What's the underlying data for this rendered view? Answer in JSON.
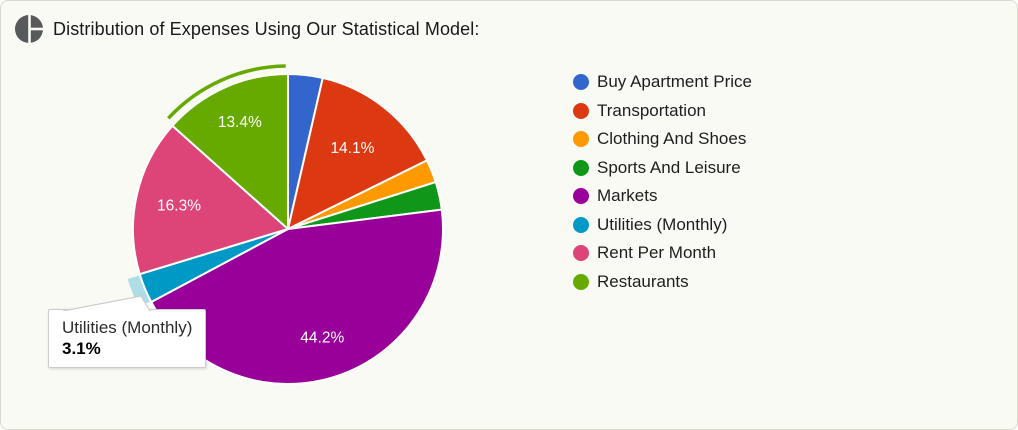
{
  "chart_data": {
    "type": "pie",
    "title": "Distribution of Expenses Using Our Statistical Model:",
    "unit": "percent",
    "legend_position": "right",
    "grid": false,
    "slices": [
      {
        "label": "Buy Apartment Price",
        "value": 3.6,
        "pct_label": "",
        "color": "#3366CC",
        "state": "normal"
      },
      {
        "label": "Transportation",
        "value": 14.1,
        "pct_label": "14.1%",
        "color": "#DC3912",
        "state": "normal"
      },
      {
        "label": "Clothing And Shoes",
        "value": 2.4,
        "pct_label": "",
        "color": "#FF9900",
        "state": "normal"
      },
      {
        "label": "Sports And Leisure",
        "value": 2.9,
        "pct_label": "",
        "color": "#109618",
        "state": "normal"
      },
      {
        "label": "Markets",
        "value": 44.2,
        "pct_label": "44.2%",
        "color": "#990099",
        "state": "normal"
      },
      {
        "label": "Utilities (Monthly)",
        "value": 3.1,
        "pct_label": "",
        "color": "#0099C6",
        "state": "hovered"
      },
      {
        "label": "Rent Per Month",
        "value": 16.3,
        "pct_label": "16.3%",
        "color": "#DD4477",
        "state": "normal"
      },
      {
        "label": "Restaurants",
        "value": 13.4,
        "pct_label": "13.4%",
        "color": "#66AA00",
        "state": "selected"
      }
    ]
  },
  "header": {
    "icon": "pie-chart-icon",
    "icon_color": "#58595B"
  },
  "tooltip": {
    "label": "Utilities (Monthly)",
    "value": "3.1%"
  },
  "style_colors": {
    "background": "#FAFAF5",
    "card_border": "#D9D9CD",
    "slice_separator": "#FFFFFF",
    "hover_band": "rgba(0,153,198,0.3)"
  }
}
